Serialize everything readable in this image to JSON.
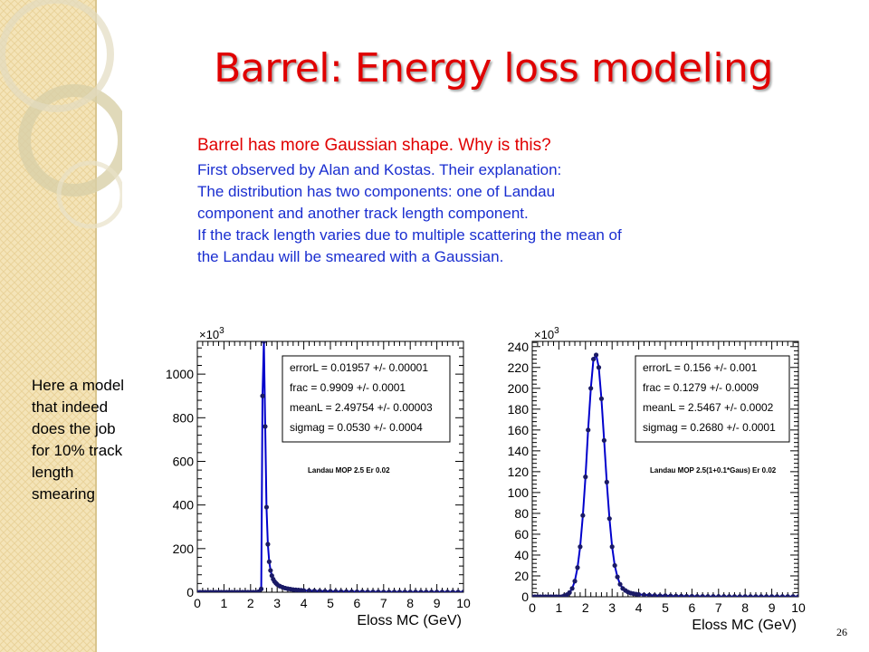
{
  "slide": {
    "title": "Barrel: Energy loss modeling",
    "text_red": "Barrel has more Gaussian shape. Why is this?",
    "text_blue": [
      "First observed by Alan and Kostas. Their explanation:",
      "The distribution has two components: one of Landau",
      "component and another track length component.",
      "If the track length varies due to multiple scattering the mean of",
      "the Landau will be smeared with a Gaussian."
    ],
    "side_note": [
      "Here a model",
      "that indeed",
      "does the job",
      "for 10% track",
      "length",
      "smearing"
    ],
    "page_number": "26",
    "colors": {
      "title": "#e00000",
      "text_red": "#e00000",
      "text_blue": "#1a2ed0",
      "fit_line": "#0000cc",
      "points": "#1a1a66"
    }
  },
  "chart_data": [
    {
      "type": "scatter",
      "xlabel": "Eloss MC (GeV)",
      "ylabel": "",
      "xlim": [
        0,
        10
      ],
      "ylim": [
        0,
        1150
      ],
      "xticks": [
        0,
        1,
        2,
        3,
        4,
        5,
        6,
        7,
        8,
        9,
        10
      ],
      "yticks": [
        0,
        200,
        400,
        600,
        800,
        1000
      ],
      "ytick_labels": [
        "0",
        "200",
        "400",
        "600",
        "800",
        "1000"
      ],
      "exponent_label": "×10",
      "exponent_power": "3",
      "fit_params": [
        "errorL  =  0.01957 +/- 0.00001",
        "frac  =  0.9909 +/- 0.0001",
        "meanL  =  2.49754 +/- 0.00003",
        "sigmag  =  0.0530 +/- 0.0004"
      ],
      "annotation": "Landau MOP 2.5 Er 0.02",
      "series": [
        {
          "x": [
            0.0,
            0.1,
            0.2,
            0.3,
            0.4,
            0.5,
            0.6,
            0.7,
            0.8,
            0.9,
            1.0,
            1.1,
            1.2,
            1.3,
            1.4,
            1.5,
            1.6,
            1.7,
            1.8,
            1.9,
            2.0,
            2.1,
            2.2,
            2.3,
            2.4,
            2.45,
            2.5,
            2.55,
            2.6,
            2.65,
            2.7,
            2.75,
            2.8,
            2.85,
            2.9,
            2.95,
            3.0,
            3.1,
            3.2,
            3.3,
            3.4,
            3.5,
            3.6,
            3.7,
            3.8,
            3.9,
            4.0,
            4.2,
            4.4,
            4.6,
            4.8,
            5.0,
            5.2,
            5.4,
            5.6,
            5.8,
            6.0,
            6.2,
            6.4,
            6.6,
            6.8,
            7.0,
            7.2,
            7.4,
            7.6,
            7.8,
            8.0,
            8.2,
            8.4,
            8.6,
            8.8,
            9.0,
            9.2,
            9.4,
            9.6,
            9.8,
            10.0
          ],
          "y": [
            0,
            0,
            0,
            0,
            0,
            0,
            0,
            0,
            0,
            0,
            0,
            0,
            0,
            0,
            0,
            0,
            0,
            0,
            0,
            0,
            0,
            0,
            0,
            2,
            15,
            900,
            1150,
            760,
            390,
            220,
            140,
            100,
            76,
            60,
            49,
            42,
            36,
            28,
            23,
            19,
            16,
            14,
            12,
            11,
            10,
            9,
            8,
            7,
            6,
            5,
            4.5,
            4,
            3.5,
            3,
            2.8,
            2.5,
            2.3,
            2,
            1.8,
            1.6,
            1.5,
            1.4,
            1.3,
            1.2,
            1.1,
            1,
            1,
            1,
            1,
            1,
            1,
            1,
            1,
            1,
            1,
            1,
            1
          ]
        }
      ]
    },
    {
      "type": "scatter",
      "xlabel": "Eloss MC (GeV)",
      "ylabel": "",
      "xlim": [
        0,
        10
      ],
      "ylim": [
        0,
        245
      ],
      "xticks": [
        0,
        1,
        2,
        3,
        4,
        5,
        6,
        7,
        8,
        9,
        10
      ],
      "yticks": [
        0,
        20,
        40,
        60,
        80,
        100,
        120,
        140,
        160,
        180,
        200,
        220,
        240
      ],
      "ytick_labels": [
        "0",
        "20",
        "40",
        "60",
        "80",
        "100",
        "120",
        "140",
        "160",
        "180",
        "200",
        "220",
        "240"
      ],
      "exponent_label": "×10",
      "exponent_power": "3",
      "fit_params": [
        "errorL  =  0.156 +/- 0.001",
        "frac  =  0.1279 +/- 0.0009",
        "meanL  =  2.5467 +/- 0.0002",
        "sigmag  =  0.2680 +/- 0.0001"
      ],
      "annotation": "Landau MOP 2.5(1+0.1*Gaus) Er 0.02",
      "series": [
        {
          "x": [
            0.0,
            0.1,
            0.2,
            0.3,
            0.4,
            0.5,
            0.6,
            0.7,
            0.8,
            0.9,
            1.0,
            1.1,
            1.2,
            1.3,
            1.4,
            1.5,
            1.6,
            1.7,
            1.8,
            1.9,
            2.0,
            2.1,
            2.2,
            2.3,
            2.4,
            2.5,
            2.6,
            2.7,
            2.8,
            2.9,
            3.0,
            3.1,
            3.2,
            3.3,
            3.4,
            3.5,
            3.6,
            3.7,
            3.8,
            3.9,
            4.0,
            4.2,
            4.4,
            4.6,
            4.8,
            5.0,
            5.2,
            5.4,
            5.6,
            5.8,
            6.0,
            6.2,
            6.4,
            6.6,
            6.8,
            7.0,
            7.2,
            7.4,
            7.6,
            7.8,
            8.0,
            8.2,
            8.4,
            8.6,
            8.8,
            9.0,
            9.2,
            9.4,
            9.6,
            9.8,
            10.0
          ],
          "y": [
            0,
            0,
            0,
            0,
            0,
            0,
            0,
            0,
            0,
            0,
            0,
            0,
            1,
            2,
            4,
            8,
            15,
            28,
            48,
            78,
            115,
            160,
            200,
            228,
            232,
            220,
            190,
            150,
            110,
            75,
            48,
            30,
            19,
            12,
            8,
            6,
            4.5,
            3.5,
            3,
            2.5,
            2.2,
            1.8,
            1.5,
            1.2,
            1,
            1,
            0.8,
            0.7,
            0.6,
            0.5,
            0.5,
            0.4,
            0.4,
            0.3,
            0.3,
            0.3,
            0.3,
            0.2,
            0.2,
            0.2,
            0.2,
            0.2,
            0.2,
            0.2,
            0.2,
            0.2,
            0.2,
            0.2,
            0.2,
            0.2,
            0.2
          ]
        }
      ]
    }
  ]
}
